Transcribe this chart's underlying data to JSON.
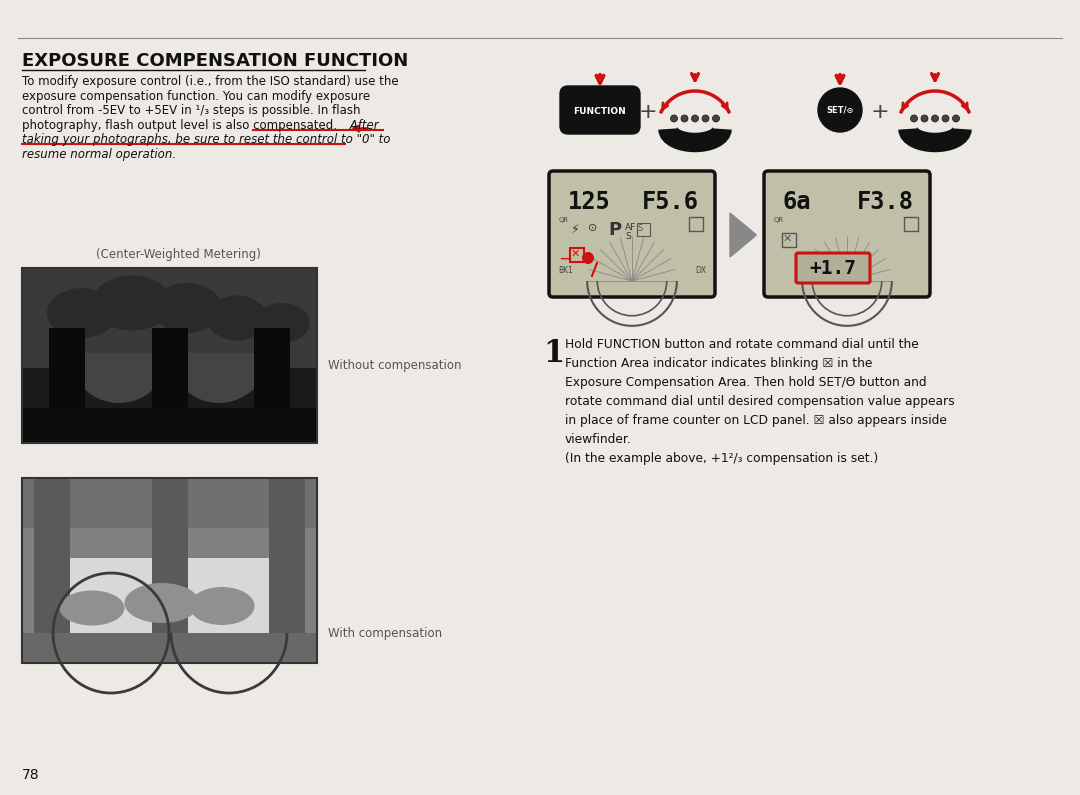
{
  "page_bg": "#ede9e4",
  "title": "EXPOSURE COMPENSATION FUNCTION",
  "body_line1": "To modify exposure control (i.e., from the ISO standard) use the",
  "body_line2": "exposure compensation function. You can modify exposure",
  "body_line3": "control from -5EV to +5EV in ¹/₃ steps is possible. In flash",
  "body_line4": "photography, flash output level is also compensated.",
  "body_italic": " After",
  "body_italic2": "taking your photographs, be sure to reset the control to \"0\" to",
  "body_italic3": "resume normal operation.",
  "caption_center": "(Center-Weighted Metering)",
  "caption_without": "Without compensation",
  "caption_with": "With compensation",
  "page_num": "78",
  "step_num": "1",
  "step_text": "Hold FUNCTION button and rotate command dial until the\nFunction Area indicator indicates blinking ☒ in the\nExposure Compensation Area. Then hold SET/Θ button and\nrotate command dial until desired compensation value appears\nin place of frame counter on LCD panel. ☒ also appears inside\nviewfinder.\n(In the example above, +1²/₃ compensation is set.)",
  "lcd1_shutter": "125",
  "lcd1_aperture": "F5.6",
  "lcd2_shutter": "6a",
  "lcd2_aperture": "F3.8",
  "lcd2_comp": "+1.7",
  "red": "#cc1111",
  "black": "#111111",
  "gray_text": "#555555",
  "lcd_bg": "#c0c0a8",
  "border_color": "#222222",
  "line_color": "#777777"
}
